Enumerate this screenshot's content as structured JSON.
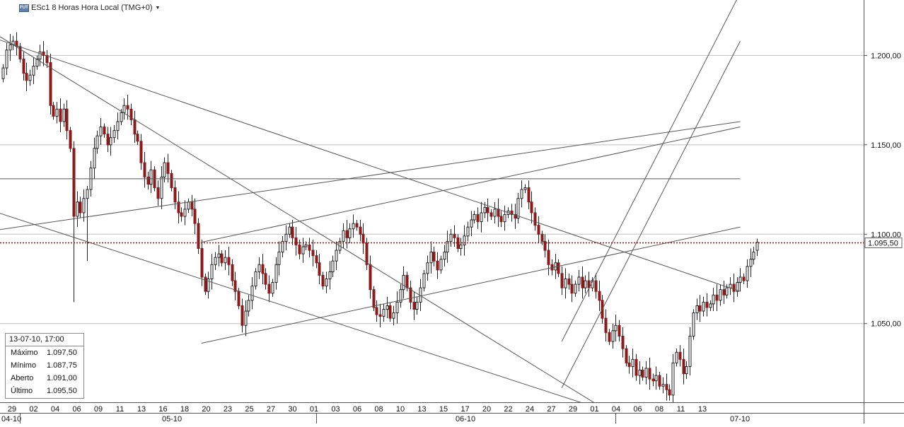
{
  "header": {
    "icon_text": "FUT",
    "title": "ESc1 8 Horas Hora Local (TMG+0)"
  },
  "info_box": {
    "datetime": "13-07-10, 17:00",
    "rows": [
      {
        "label": "Máximo",
        "value": "1.097,50"
      },
      {
        "label": "Mínimo",
        "value": "1.087,75"
      },
      {
        "label": "Aberto",
        "value": "1.091,00"
      },
      {
        "label": "Último",
        "value": "1.095,50"
      }
    ]
  },
  "chart_data": {
    "type": "candlestick",
    "symbol": "ESc1",
    "interval": "8 Horas",
    "ylim": [
      1006,
      1231
    ],
    "y_ticks": [
      {
        "value": 1050,
        "label": "1.050,00"
      },
      {
        "value": 1100,
        "label": "1.100,00"
      },
      {
        "value": 1150,
        "label": "1.150,00"
      },
      {
        "value": 1200,
        "label": "1.200,00"
      }
    ],
    "last_price": {
      "value": 1095.5,
      "label": "1.095,50",
      "color": "#c00000"
    },
    "x_day_labels": [
      "29",
      "02",
      "04",
      "06",
      "09",
      "11",
      "13",
      "16",
      "18",
      "20",
      "23",
      "25",
      "27",
      "30",
      "01",
      "03",
      "06",
      "08",
      "10",
      "13",
      "15",
      "17",
      "20",
      "22",
      "24",
      "27",
      "29",
      "01",
      "04",
      "06",
      "08",
      "11",
      "13"
    ],
    "x_month_labels": [
      "04-10",
      "05-10",
      "06-10",
      "07-10"
    ],
    "colors": {
      "up": "#ffffff",
      "down": "#8b1a1a",
      "outline": "#222222",
      "trendline": "#555555",
      "grid": "#bfbfbf"
    },
    "closes": [
      1193,
      1203,
      1206,
      1208,
      1205,
      1198,
      1190,
      1186,
      1189,
      1194,
      1198,
      1202,
      1200,
      1196,
      1172,
      1166,
      1170,
      1163,
      1170,
      1158,
      1148,
      1110,
      1118,
      1112,
      1120,
      1125,
      1137,
      1148,
      1155,
      1160,
      1156,
      1150,
      1154,
      1158,
      1163,
      1168,
      1172,
      1170,
      1164,
      1156,
      1152,
      1140,
      1132,
      1128,
      1136,
      1126,
      1120,
      1132,
      1140,
      1134,
      1126,
      1118,
      1112,
      1110,
      1114,
      1118,
      1114,
      1106,
      1092,
      1076,
      1068,
      1075,
      1083,
      1087,
      1089,
      1084,
      1087,
      1083,
      1074,
      1068,
      1060,
      1049,
      1057,
      1063,
      1071,
      1079,
      1083,
      1078,
      1072,
      1067,
      1073,
      1083,
      1090,
      1096,
      1100,
      1104,
      1098,
      1094,
      1089,
      1093,
      1094,
      1091,
      1088,
      1084,
      1077,
      1071,
      1075,
      1079,
      1085,
      1091,
      1096,
      1102,
      1098,
      1103,
      1106,
      1104,
      1100,
      1095,
      1083,
      1069,
      1059,
      1055,
      1054,
      1058,
      1060,
      1053,
      1056,
      1062,
      1069,
      1077,
      1070,
      1062,
      1058,
      1062,
      1070,
      1078,
      1084,
      1090,
      1085,
      1080,
      1086,
      1090,
      1096,
      1100,
      1098,
      1092,
      1094,
      1099,
      1104,
      1108,
      1111,
      1107,
      1112,
      1115,
      1112,
      1110,
      1114,
      1110,
      1107,
      1111,
      1113,
      1111,
      1109,
      1120,
      1125,
      1126,
      1118,
      1112,
      1105,
      1100,
      1096,
      1091,
      1083,
      1080,
      1084,
      1078,
      1070,
      1075,
      1072,
      1067,
      1072,
      1076,
      1070,
      1074,
      1070,
      1074,
      1068,
      1063,
      1053,
      1045,
      1040,
      1046,
      1049,
      1043,
      1036,
      1028,
      1026,
      1030,
      1021,
      1024,
      1020,
      1025,
      1019,
      1018,
      1021,
      1015,
      1016,
      1013,
      1010,
      1028,
      1034,
      1030,
      1022,
      1026,
      1043,
      1056,
      1060,
      1057,
      1062,
      1059,
      1061,
      1066,
      1063,
      1069,
      1066,
      1070,
      1072,
      1068,
      1073,
      1076,
      1074,
      1082,
      1086,
      1090,
      1095.5
    ],
    "trendlines": [
      {
        "x1": -3,
        "y1": 1102,
        "x2": 219,
        "y2": 1163
      },
      {
        "x1": 59,
        "y1": 1095.5,
        "x2": 219,
        "y2": 1160
      },
      {
        "x1": -3,
        "y1": 1210,
        "x2": 219,
        "y2": 1068
      },
      {
        "x1": -3,
        "y1": 1213,
        "x2": 178,
        "y2": 1003
      },
      {
        "x1": -3,
        "y1": 1113,
        "x2": 178,
        "y2": 1002
      },
      {
        "x1": 59,
        "y1": 1039,
        "x2": 219,
        "y2": 1104
      },
      {
        "x1": 166,
        "y1": 1040,
        "x2": 219,
        "y2": 1235
      },
      {
        "x1": 166,
        "y1": 1014,
        "x2": 219,
        "y2": 1208
      },
      {
        "x1": -3,
        "y1": 1131,
        "x2": 219,
        "y2": 1131
      }
    ]
  }
}
